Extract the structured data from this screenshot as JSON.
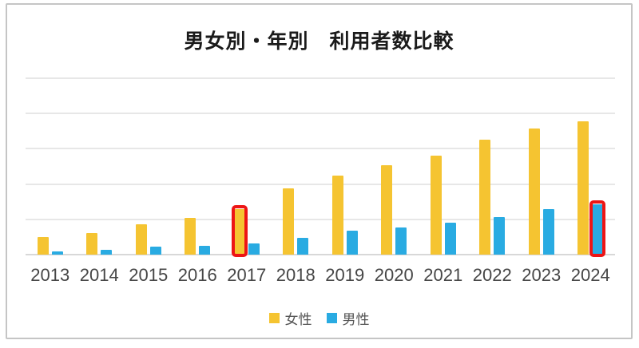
{
  "chart_data": {
    "type": "bar",
    "title": "男女別・年別　利用者数比較",
    "categories": [
      "2013",
      "2014",
      "2015",
      "2016",
      "2017",
      "2018",
      "2019",
      "2020",
      "2021",
      "2022",
      "2023",
      "2024"
    ],
    "series": [
      {
        "name": "女性",
        "key": "female",
        "color": "#F5C431",
        "values": [
          50,
          62,
          85,
          103,
          128,
          188,
          224,
          253,
          281,
          325,
          358,
          378
        ]
      },
      {
        "name": "男性",
        "key": "male",
        "color": "#29ABE2",
        "values": [
          9,
          14,
          22,
          25,
          31,
          47,
          68,
          78,
          90,
          106,
          128,
          142
        ]
      }
    ],
    "xlabel": "",
    "ylabel": "",
    "ylim": [
      0,
      500
    ],
    "gridline_step": 100,
    "y_tick_labels_visible": false,
    "grid": "horizontal",
    "legend_position": "bottom-center",
    "annotations": [
      {
        "type": "highlight-box",
        "category": "2017",
        "series": "女性",
        "color": "#ED1515"
      },
      {
        "type": "highlight-box",
        "category": "2024",
        "series": "男性",
        "color": "#ED1515"
      }
    ]
  },
  "colors": {
    "female_bar": "#F5C431",
    "male_bar": "#29ABE2",
    "highlight_border": "#ED1515",
    "gridline": "#e7e7e7",
    "axis_line": "#d8d8d8",
    "card_border": "#c5c5c5",
    "title_text": "#1b1b1b",
    "x_label_text": "#464646",
    "legend_text": "#555555",
    "background": "#ffffff"
  }
}
